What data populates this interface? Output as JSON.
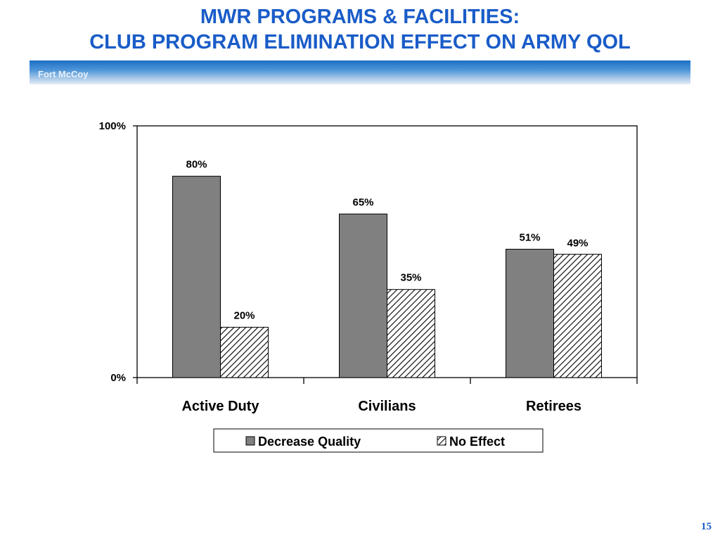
{
  "header": {
    "title_line1": "MWR PROGRAMS & FACILITIES:",
    "title_line2": "CLUB PROGRAM ELIMINATION EFFECT ON ARMY QOL",
    "banner_label": "Fort McCoy"
  },
  "page_number": "15",
  "colors": {
    "title": "#1a5cc8",
    "series_decrease": "#808080",
    "series_no_effect_pattern": "#000000"
  },
  "chart_data": {
    "type": "bar",
    "categories": [
      "Active Duty",
      "Civilians",
      "Retirees"
    ],
    "series": [
      {
        "name": "Decrease Quality",
        "values": [
          80,
          65,
          51
        ],
        "labels": [
          "80%",
          "65%",
          "51%"
        ],
        "fill": "solid-gray"
      },
      {
        "name": "No Effect",
        "values": [
          20,
          35,
          49
        ],
        "labels": [
          "20%",
          "35%",
          "49%"
        ],
        "fill": "diagonal-hatch"
      }
    ],
    "ylim": [
      0,
      100
    ],
    "yticks": [
      "0%",
      "100%"
    ],
    "grid": false,
    "legend": "bottom-center",
    "title": "",
    "xlabel": "",
    "ylabel": ""
  }
}
